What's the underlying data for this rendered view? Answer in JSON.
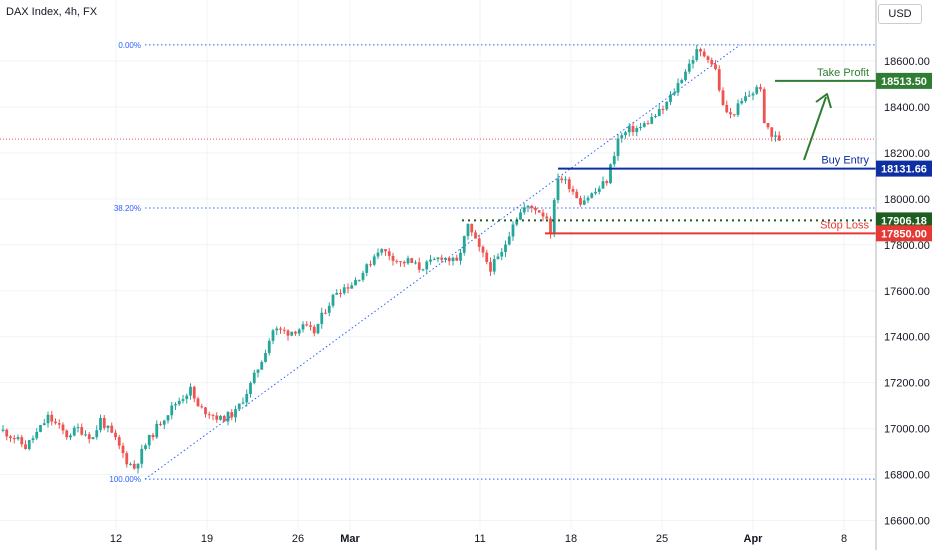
{
  "header": {
    "symbol_title": "DAX Index, 4h, FX",
    "currency_button": "USD"
  },
  "colors": {
    "up": "#26a69a",
    "down": "#ef5350",
    "fib": "#2962ff",
    "take_profit": "#2e7d32",
    "buy_entry": "#0d2fa1",
    "stop_loss": "#e53935",
    "support": "#1b5e20",
    "current_price": "#ef5350"
  },
  "chart_data": {
    "type": "candlestick",
    "title": "DAX Index, 4h, FX",
    "y_ticks": [
      16600,
      16800,
      17000,
      17200,
      17400,
      17600,
      17800,
      18000,
      18200,
      18400,
      18600
    ],
    "y_tick_labels": [
      "16600.00",
      "16800.00",
      "17000.00",
      "17200.00",
      "17400.00",
      "17600.00",
      "17800.00",
      "18000.00",
      "18200.00",
      "18400.00",
      "18600.00"
    ],
    "ylim": [
      16560,
      18770
    ],
    "x_tick_labels": [
      {
        "label": "12",
        "date": "2024-02-12"
      },
      {
        "label": "19",
        "date": "2024-02-19"
      },
      {
        "label": "26",
        "date": "2024-02-26"
      },
      {
        "label": "Mar",
        "date": "2024-03-01"
      },
      {
        "label": "11",
        "date": "2024-03-11"
      },
      {
        "label": "18",
        "date": "2024-03-18"
      },
      {
        "label": "25",
        "date": "2024-03-25"
      },
      {
        "label": "Apr",
        "date": "2024-04-01"
      },
      {
        "label": "8",
        "date": "2024-04-08"
      }
    ],
    "closes": [
      [
        0,
        16990
      ],
      [
        3,
        16960
      ],
      [
        6,
        16920
      ],
      [
        9,
        16980
      ],
      [
        12,
        17050
      ],
      [
        14,
        17020
      ],
      [
        17,
        16970
      ],
      [
        20,
        17000
      ],
      [
        24,
        16960
      ],
      [
        26,
        17040
      ],
      [
        30,
        16950
      ],
      [
        33,
        16860
      ],
      [
        35,
        16830
      ],
      [
        38,
        16930
      ],
      [
        42,
        17030
      ],
      [
        46,
        17110
      ],
      [
        50,
        17170
      ],
      [
        52,
        17090
      ],
      [
        55,
        17070
      ],
      [
        58,
        17040
      ],
      [
        62,
        17070
      ],
      [
        66,
        17190
      ],
      [
        69,
        17300
      ],
      [
        72,
        17430
      ],
      [
        76,
        17420
      ],
      [
        80,
        17440
      ],
      [
        83,
        17420
      ],
      [
        86,
        17520
      ],
      [
        89,
        17600
      ],
      [
        93,
        17630
      ],
      [
        97,
        17700
      ],
      [
        100,
        17780
      ],
      [
        103,
        17760
      ],
      [
        106,
        17720
      ],
      [
        108,
        17730
      ],
      [
        111,
        17700
      ],
      [
        114,
        17720
      ],
      [
        117,
        17750
      ],
      [
        121,
        17720
      ],
      [
        124,
        17880
      ],
      [
        127,
        17780
      ],
      [
        130,
        17700
      ],
      [
        133,
        17760
      ],
      [
        136,
        17900
      ],
      [
        139,
        17960
      ],
      [
        142,
        17960
      ],
      [
        145,
        17920
      ],
      [
        146,
        17860
      ],
      [
        148,
        18100
      ],
      [
        151,
        18060
      ],
      [
        154,
        17990
      ],
      [
        158,
        18030
      ],
      [
        161,
        18080
      ],
      [
        164,
        18260
      ],
      [
        167,
        18300
      ],
      [
        170,
        18310
      ],
      [
        173,
        18350
      ],
      [
        176,
        18390
      ],
      [
        179,
        18470
      ],
      [
        182,
        18560
      ],
      [
        185,
        18640
      ],
      [
        188,
        18620
      ],
      [
        190,
        18560
      ],
      [
        192,
        18400
      ],
      [
        194,
        18360
      ],
      [
        198,
        18440
      ],
      [
        202,
        18490
      ],
      [
        203,
        18350
      ],
      [
        205,
        18270
      ],
      [
        207,
        18260
      ]
    ],
    "fibonacci": [
      {
        "label": "0.00%",
        "value": 18670
      },
      {
        "label": "38.20%",
        "value": 17960
      },
      {
        "label": "100.00%",
        "value": 16780
      }
    ],
    "price_levels": [
      {
        "name": "Take Profit",
        "value": 18513.5,
        "label": "18513.50",
        "style": "solid"
      },
      {
        "name": "Buy Entry",
        "value": 18131.66,
        "label": "18131.66",
        "style": "solid"
      },
      {
        "name": "",
        "value": 17906.18,
        "label": "17906.18",
        "style": "dotted"
      },
      {
        "name": "Stop Loss",
        "value": 17850.0,
        "label": "17850.00",
        "style": "solid"
      }
    ],
    "current_price": 18260
  }
}
